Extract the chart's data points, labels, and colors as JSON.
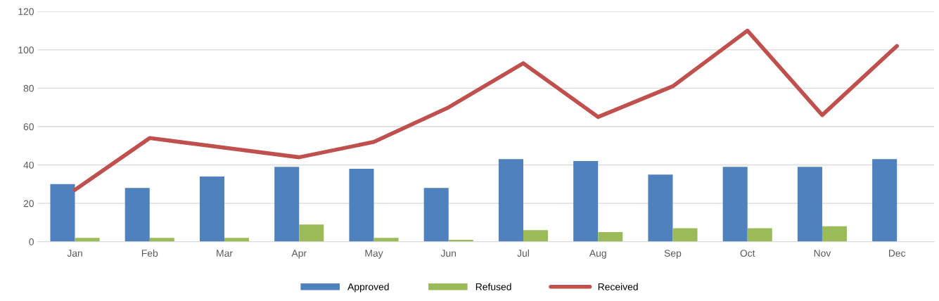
{
  "chart_data": {
    "type": "bar",
    "categories": [
      "Jan",
      "Feb",
      "Mar",
      "Apr",
      "May",
      "Jun",
      "Jul",
      "Aug",
      "Sep",
      "Oct",
      "Nov",
      "Dec"
    ],
    "series": [
      {
        "name": "Approved",
        "color": "#4f81bd",
        "values": [
          30,
          28,
          34,
          39,
          38,
          28,
          43,
          42,
          35,
          39,
          39,
          43
        ]
      },
      {
        "name": "Refused",
        "color": "#9bbb59",
        "values": [
          2,
          2,
          2,
          9,
          2,
          1,
          6,
          5,
          7,
          7,
          8,
          0
        ]
      },
      {
        "name": "Received",
        "type": "line",
        "color": "#c0504d",
        "values": [
          27,
          54,
          49,
          44,
          52,
          70,
          93,
          65,
          81,
          110,
          66,
          102
        ]
      }
    ],
    "ylim": [
      0,
      120
    ],
    "yticks": [
      0,
      20,
      40,
      60,
      80,
      100,
      120
    ],
    "grid": "y",
    "legend": "bottom"
  }
}
